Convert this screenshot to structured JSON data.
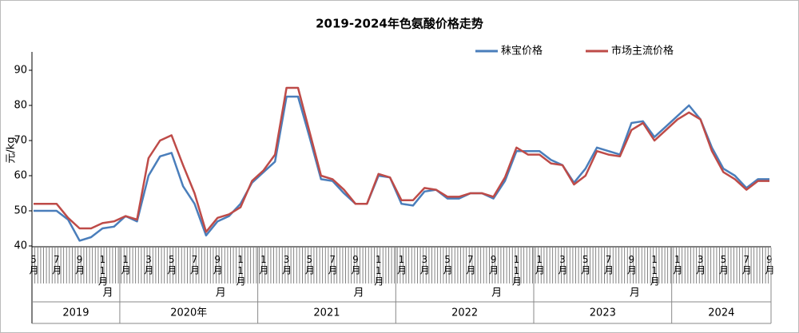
{
  "chart_data": {
    "type": "line",
    "title": "2019-2024年色氨酸价格走势",
    "y_label": "元/kg",
    "ylim": [
      40,
      90
    ],
    "yticks": [
      40,
      50,
      60,
      70,
      80,
      90
    ],
    "categories": [
      "5月",
      null,
      "7月",
      null,
      "9月",
      null,
      "11月",
      null,
      "1月",
      null,
      "3月",
      null,
      "5月",
      null,
      "7月",
      null,
      "9月",
      null,
      "11月",
      null,
      "1月",
      null,
      "3月",
      null,
      "5月",
      null,
      "7月",
      null,
      "9月",
      null,
      "11月",
      null,
      "1月",
      null,
      "3月",
      null,
      "5月",
      null,
      "7月",
      null,
      "9月",
      null,
      "11月",
      null,
      "1月",
      null,
      "3月",
      null,
      "5月",
      null,
      "7月",
      null,
      "9月",
      null,
      "11月",
      null,
      "1月",
      null,
      "3月",
      null,
      "5月",
      null,
      "7月",
      null,
      "9月"
    ],
    "year_groups": [
      {
        "label": "2019",
        "months": 8,
        "unit": "月"
      },
      {
        "label": "2020年",
        "months": 12,
        "unit": "月"
      },
      {
        "label": "2021",
        "months": 12,
        "unit": "月"
      },
      {
        "label": "2022",
        "months": 12,
        "unit": "月"
      },
      {
        "label": "2023",
        "months": 12,
        "unit": "月"
      },
      {
        "label": "2024",
        "months": 9
      }
    ],
    "legend_position": "top-right",
    "series": [
      {
        "name": "秣宝价格",
        "color": "#4a7ebb",
        "values": [
          50,
          50,
          50,
          47.5,
          41.5,
          42.5,
          45,
          45.5,
          48.5,
          47,
          60,
          65.5,
          66.5,
          57,
          52,
          43,
          47,
          48.5,
          52,
          58,
          61,
          64,
          82.5,
          82.5,
          71,
          59,
          58.5,
          55,
          52,
          52,
          60,
          59.5,
          52,
          51.5,
          55.5,
          56,
          53.5,
          53.5,
          55,
          55,
          53.5,
          58.5,
          67,
          67,
          67,
          64.5,
          63,
          58,
          62,
          68,
          67,
          66,
          75,
          75.5,
          71,
          74,
          77,
          80,
          76,
          68,
          62,
          60,
          56.5,
          59,
          59
        ]
      },
      {
        "name": "市场主流价格",
        "color": "#be4b48",
        "values": [
          52,
          52,
          52,
          48,
          45,
          45,
          46.5,
          47,
          48.5,
          47.5,
          65,
          70,
          71.5,
          63,
          55,
          44,
          48,
          49,
          51,
          58.5,
          61.5,
          66,
          85,
          85,
          72.5,
          60,
          59,
          56,
          52,
          52,
          60.5,
          59.5,
          53,
          53,
          56.5,
          56,
          54,
          54,
          55,
          55,
          54,
          59.5,
          68,
          66,
          66,
          63.5,
          63,
          57.5,
          60,
          67,
          66,
          65.5,
          73,
          75,
          70,
          73,
          76,
          78,
          76,
          67,
          61,
          59,
          56,
          58.5,
          58.5
        ]
      }
    ]
  }
}
